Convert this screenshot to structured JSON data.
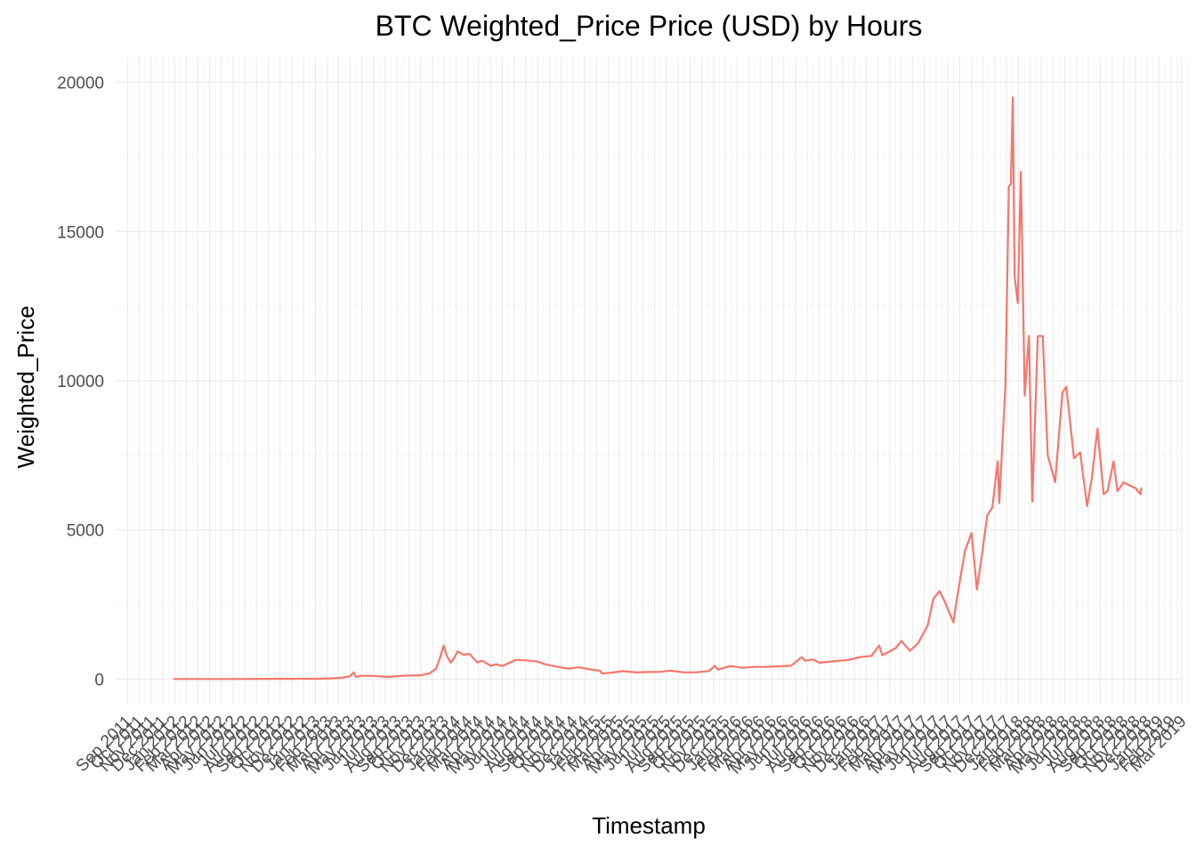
{
  "chart_data": {
    "type": "line",
    "title": "BTC Weighted_Price Price (USD) by Hours",
    "xlabel": "Timestamp",
    "ylabel": "Weighted_Price",
    "ylim": [
      -850,
      20850
    ],
    "xlim": [
      "2011-08-01",
      "2019-03-01"
    ],
    "grid": true,
    "legend": "none",
    "y_ticks": [
      0,
      5000,
      10000,
      15000,
      20000
    ],
    "y_tick_labels": [
      "0",
      "5000",
      "10000",
      "15000",
      "20000"
    ],
    "x_tick_labels": [
      "Sep 2011",
      "Oct 2011",
      "Nov 2011",
      "Dec 2011",
      "Jan 2012",
      "Feb 2012",
      "Mar 2012",
      "Apr 2012",
      "May 2012",
      "Jun 2012",
      "Jul 2012",
      "Aug 2012",
      "Sep 2012",
      "Oct 2012",
      "Nov 2012",
      "Dec 2012",
      "Jan 2013",
      "Feb 2013",
      "Mar 2013",
      "Apr 2013",
      "May 2013",
      "Jun 2013",
      "Jul 2013",
      "Aug 2013",
      "Sep 2013",
      "Oct 2013",
      "Nov 2013",
      "Dec 2013",
      "Jan 2014",
      "Feb 2014",
      "Mar 2014",
      "Apr 2014",
      "May 2014",
      "Jun 2014",
      "Jul 2014",
      "Aug 2014",
      "Sep 2014",
      "Oct 2014",
      "Nov 2014",
      "Dec 2014",
      "Jan 2015",
      "Feb 2015",
      "Mar 2015",
      "Apr 2015",
      "May 2015",
      "Jun 2015",
      "Jul 2015",
      "Aug 2015",
      "Sep 2015",
      "Oct 2015",
      "Nov 2015",
      "Dec 2015",
      "Jan 2016",
      "Feb 2016",
      "Mar 2016",
      "Apr 2016",
      "May 2016",
      "Jun 2016",
      "Jul 2016",
      "Aug 2016",
      "Sep 2016",
      "Oct 2016",
      "Nov 2016",
      "Dec 2016",
      "Jan 2017",
      "Feb 2017",
      "Mar 2017",
      "Apr 2017",
      "May 2017",
      "Jun 2017",
      "Jul 2017",
      "Aug 2017",
      "Sep 2017",
      "Oct 2017",
      "Nov 2017",
      "Dec 2017",
      "Jan 2018",
      "Feb 2018",
      "Mar 2018",
      "Apr 2018",
      "May 2018",
      "Jun 2018",
      "Jul 2018",
      "Aug 2018",
      "Sep 2018",
      "Oct 2018",
      "Nov 2018",
      "Dec 2018",
      "Jan 2019",
      "Feb 2019",
      "Mar 2019"
    ],
    "series": [
      {
        "color": "#F8766D",
        "points": [
          [
            "2011-12-31",
            4.5
          ],
          [
            "2012-03-01",
            5
          ],
          [
            "2012-06-01",
            6.5
          ],
          [
            "2012-09-01",
            11
          ],
          [
            "2012-12-01",
            13
          ],
          [
            "2013-01-15",
            15
          ],
          [
            "2013-02-15",
            28
          ],
          [
            "2013-03-15",
            55
          ],
          [
            "2013-04-01",
            100
          ],
          [
            "2013-04-10",
            230
          ],
          [
            "2013-04-16",
            75
          ],
          [
            "2013-05-01",
            115
          ],
          [
            "2013-06-01",
            110
          ],
          [
            "2013-07-05",
            75
          ],
          [
            "2013-08-01",
            100
          ],
          [
            "2013-09-01",
            125
          ],
          [
            "2013-10-01",
            130
          ],
          [
            "2013-10-25",
            200
          ],
          [
            "2013-11-10",
            350
          ],
          [
            "2013-11-20",
            700
          ],
          [
            "2013-11-30",
            1130
          ],
          [
            "2013-12-08",
            780
          ],
          [
            "2013-12-18",
            550
          ],
          [
            "2013-12-28",
            730
          ],
          [
            "2014-01-05",
            930
          ],
          [
            "2014-01-20",
            820
          ],
          [
            "2014-02-05",
            850
          ],
          [
            "2014-02-25",
            560
          ],
          [
            "2014-03-10",
            620
          ],
          [
            "2014-04-01",
            450
          ],
          [
            "2014-04-15",
            500
          ],
          [
            "2014-05-01",
            440
          ],
          [
            "2014-05-25",
            580
          ],
          [
            "2014-06-05",
            650
          ],
          [
            "2014-07-01",
            630
          ],
          [
            "2014-08-01",
            590
          ],
          [
            "2014-08-20",
            500
          ],
          [
            "2014-09-20",
            420
          ],
          [
            "2014-10-20",
            350
          ],
          [
            "2014-11-15",
            400
          ],
          [
            "2014-12-15",
            330
          ],
          [
            "2015-01-10",
            280
          ],
          [
            "2015-01-15",
            190
          ],
          [
            "2015-02-10",
            220
          ],
          [
            "2015-03-10",
            270
          ],
          [
            "2015-04-15",
            225
          ],
          [
            "2015-05-15",
            240
          ],
          [
            "2015-06-15",
            245
          ],
          [
            "2015-07-10",
            290
          ],
          [
            "2015-08-15",
            230
          ],
          [
            "2015-09-15",
            230
          ],
          [
            "2015-10-20",
            270
          ],
          [
            "2015-11-04",
            450
          ],
          [
            "2015-11-12",
            320
          ],
          [
            "2015-12-15",
            440
          ],
          [
            "2016-01-15",
            380
          ],
          [
            "2016-02-15",
            410
          ],
          [
            "2016-03-15",
            415
          ],
          [
            "2016-04-15",
            430
          ],
          [
            "2016-05-20",
            450
          ],
          [
            "2016-06-17",
            740
          ],
          [
            "2016-06-25",
            620
          ],
          [
            "2016-07-15",
            660
          ],
          [
            "2016-08-02",
            550
          ],
          [
            "2016-09-15",
            610
          ],
          [
            "2016-10-15",
            640
          ],
          [
            "2016-11-15",
            740
          ],
          [
            "2016-12-15",
            780
          ],
          [
            "2017-01-04",
            1130
          ],
          [
            "2017-01-12",
            800
          ],
          [
            "2017-02-15",
            1030
          ],
          [
            "2017-03-03",
            1280
          ],
          [
            "2017-03-25",
            950
          ],
          [
            "2017-04-15",
            1200
          ],
          [
            "2017-05-10",
            1800
          ],
          [
            "2017-05-25",
            2700
          ],
          [
            "2017-06-10",
            2950
          ],
          [
            "2017-06-25",
            2550
          ],
          [
            "2017-07-16",
            1900
          ],
          [
            "2017-07-25",
            2700
          ],
          [
            "2017-08-15",
            4300
          ],
          [
            "2017-09-01",
            4900
          ],
          [
            "2017-09-15",
            3000
          ],
          [
            "2017-09-25",
            3900
          ],
          [
            "2017-10-12",
            5500
          ],
          [
            "2017-10-25",
            5750
          ],
          [
            "2017-11-08",
            7300
          ],
          [
            "2017-11-12",
            5900
          ],
          [
            "2017-11-28",
            9800
          ],
          [
            "2017-12-07",
            16500
          ],
          [
            "2017-12-12",
            16600
          ],
          [
            "2017-12-17",
            19500
          ],
          [
            "2017-12-22",
            13500
          ],
          [
            "2017-12-30",
            12600
          ],
          [
            "2018-01-07",
            17000
          ],
          [
            "2018-01-17",
            9500
          ],
          [
            "2018-01-28",
            11500
          ],
          [
            "2018-02-06",
            5950
          ],
          [
            "2018-02-20",
            11500
          ],
          [
            "2018-03-05",
            11500
          ],
          [
            "2018-03-18",
            7500
          ],
          [
            "2018-04-06",
            6600
          ],
          [
            "2018-04-25",
            9600
          ],
          [
            "2018-05-05",
            9800
          ],
          [
            "2018-05-25",
            7400
          ],
          [
            "2018-06-10",
            7600
          ],
          [
            "2018-06-28",
            5800
          ],
          [
            "2018-07-10",
            6700
          ],
          [
            "2018-07-25",
            8400
          ],
          [
            "2018-08-10",
            6200
          ],
          [
            "2018-08-20",
            6300
          ],
          [
            "2018-09-05",
            7300
          ],
          [
            "2018-09-15",
            6300
          ],
          [
            "2018-10-01",
            6600
          ],
          [
            "2018-10-15",
            6500
          ],
          [
            "2018-11-01",
            6400
          ],
          [
            "2018-11-14",
            6200
          ],
          [
            "2018-11-16",
            6400
          ]
        ]
      }
    ]
  }
}
